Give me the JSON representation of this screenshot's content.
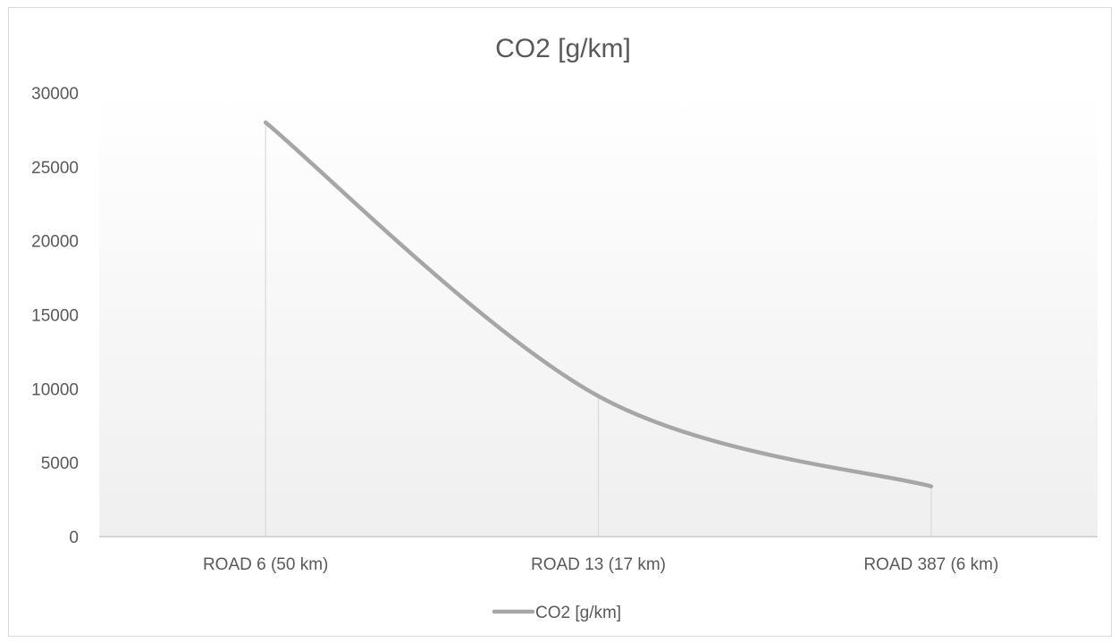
{
  "chart_data": {
    "type": "line",
    "title": "CO2 [g/km]",
    "xlabel": "",
    "ylabel": "",
    "categories": [
      "ROAD 6 (50 km)",
      "ROAD 13 (17 km)",
      "ROAD 387 (6 km)"
    ],
    "series": [
      {
        "name": "CO2 [g/km]",
        "values": [
          28000,
          9500,
          3400
        ],
        "color": "#a6a6a6",
        "smooth": true
      }
    ],
    "ylim": [
      0,
      30000
    ],
    "yticks": [
      "0",
      "5000",
      "10000",
      "15000",
      "20000",
      "25000",
      "30000"
    ],
    "ytick_values": [
      0,
      5000,
      10000,
      15000,
      20000,
      25000,
      30000
    ],
    "grid": false,
    "drop_lines": true,
    "legend": "bottom"
  }
}
